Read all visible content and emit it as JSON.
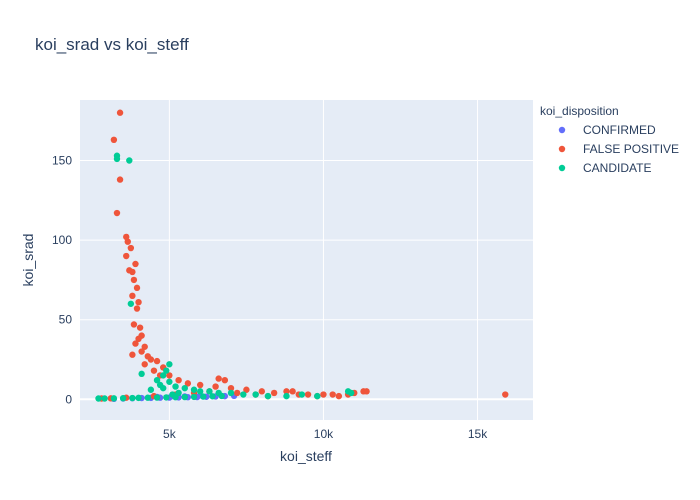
{
  "chart_data": {
    "type": "scatter",
    "title": "koi_srad vs koi_steff",
    "xlabel": "koi_steff",
    "ylabel": "koi_srad",
    "xlim": [
      2100,
      16800
    ],
    "ylim": [
      -13,
      188
    ],
    "x_ticks": [
      {
        "value": 5000,
        "label": "5k"
      },
      {
        "value": 10000,
        "label": "10k"
      },
      {
        "value": 15000,
        "label": "15k"
      }
    ],
    "y_ticks": [
      {
        "value": 0,
        "label": "0"
      },
      {
        "value": 50,
        "label": "50"
      },
      {
        "value": 100,
        "label": "100"
      },
      {
        "value": 150,
        "label": "150"
      }
    ],
    "grid": true,
    "legend": {
      "title": "koi_disposition",
      "position": "top-right"
    },
    "series": [
      {
        "name": "CONFIRMED",
        "color": "#636efa",
        "points": [
          [
            3200,
            0.3
          ],
          [
            3500,
            0.5
          ],
          [
            3800,
            0.7
          ],
          [
            4100,
            0.8
          ],
          [
            4400,
            0.9
          ],
          [
            4700,
            1.0
          ],
          [
            5000,
            1.1
          ],
          [
            5300,
            1.2
          ],
          [
            5600,
            1.3
          ],
          [
            5900,
            1.4
          ],
          [
            6200,
            1.6
          ],
          [
            6500,
            1.8
          ],
          [
            6800,
            2.0
          ],
          [
            7100,
            2.2
          ],
          [
            4600,
            1.5
          ],
          [
            5100,
            2.0
          ],
          [
            5500,
            1.8
          ],
          [
            6000,
            2.5
          ]
        ]
      },
      {
        "name": "FALSE POSITIVE",
        "color": "#ef553b",
        "points": [
          [
            3400,
            180
          ],
          [
            3200,
            163
          ],
          [
            3400,
            138
          ],
          [
            3300,
            117
          ],
          [
            3600,
            102
          ],
          [
            3650,
            99
          ],
          [
            3750,
            95
          ],
          [
            3600,
            90
          ],
          [
            3700,
            81
          ],
          [
            3900,
            85
          ],
          [
            3800,
            80
          ],
          [
            3850,
            75
          ],
          [
            3950,
            70
          ],
          [
            3800,
            65
          ],
          [
            4000,
            61
          ],
          [
            3950,
            57
          ],
          [
            3850,
            47
          ],
          [
            4050,
            45
          ],
          [
            4100,
            40
          ],
          [
            4000,
            38
          ],
          [
            3900,
            35
          ],
          [
            4200,
            33
          ],
          [
            3800,
            28
          ],
          [
            4100,
            30
          ],
          [
            4300,
            27
          ],
          [
            4400,
            25
          ],
          [
            4200,
            22
          ],
          [
            4600,
            24
          ],
          [
            4800,
            20
          ],
          [
            4500,
            18
          ],
          [
            4700,
            15
          ],
          [
            5000,
            15
          ],
          [
            5300,
            12
          ],
          [
            5600,
            10
          ],
          [
            6000,
            9
          ],
          [
            6500,
            8
          ],
          [
            6600,
            13
          ],
          [
            6800,
            12
          ],
          [
            7000,
            7
          ],
          [
            7500,
            6
          ],
          [
            8000,
            5
          ],
          [
            8400,
            4
          ],
          [
            8800,
            5
          ],
          [
            9000,
            5
          ],
          [
            9500,
            3
          ],
          [
            10000,
            3
          ],
          [
            10300,
            3
          ],
          [
            10800,
            3
          ],
          [
            11000,
            4
          ],
          [
            11300,
            5
          ],
          [
            11400,
            5
          ],
          [
            15900,
            3
          ],
          [
            2800,
            0.5
          ],
          [
            3100,
            0.6
          ],
          [
            3600,
            1
          ],
          [
            4500,
            2
          ],
          [
            5200,
            3
          ],
          [
            5800,
            4
          ],
          [
            6300,
            5
          ],
          [
            7200,
            4
          ],
          [
            7800,
            3
          ],
          [
            8200,
            2
          ],
          [
            9200,
            3
          ],
          [
            9800,
            2
          ],
          [
            10500,
            2
          ]
        ]
      },
      {
        "name": "CANDIDATE",
        "color": "#00cc96",
        "points": [
          [
            3300,
            153
          ],
          [
            3300,
            151
          ],
          [
            3700,
            150
          ],
          [
            3750,
            60
          ],
          [
            4100,
            16
          ],
          [
            4600,
            12
          ],
          [
            5000,
            22
          ],
          [
            4900,
            18
          ],
          [
            4800,
            15
          ],
          [
            5000,
            11
          ],
          [
            4700,
            9
          ],
          [
            5200,
            8
          ],
          [
            5500,
            7
          ],
          [
            5800,
            6
          ],
          [
            6000,
            5
          ],
          [
            6300,
            5
          ],
          [
            6600,
            4
          ],
          [
            7000,
            4
          ],
          [
            7400,
            3
          ],
          [
            7800,
            3
          ],
          [
            8200,
            2
          ],
          [
            8800,
            2
          ],
          [
            9300,
            3
          ],
          [
            9800,
            2
          ],
          [
            10800,
            5
          ],
          [
            10900,
            4
          ],
          [
            2700,
            0.5
          ],
          [
            2900,
            0.5
          ],
          [
            3200,
            0.6
          ],
          [
            3500,
            0.7
          ],
          [
            3800,
            0.8
          ],
          [
            4000,
            0.9
          ],
          [
            4300,
            1.0
          ],
          [
            4600,
            1.1
          ],
          [
            4900,
            1.2
          ],
          [
            5200,
            1.3
          ],
          [
            5500,
            1.4
          ],
          [
            5800,
            1.5
          ],
          [
            6100,
            1.7
          ],
          [
            6400,
            1.9
          ],
          [
            6700,
            2.1
          ],
          [
            5100,
            3
          ],
          [
            5300,
            4
          ],
          [
            4400,
            6
          ],
          [
            4800,
            7
          ]
        ]
      }
    ]
  }
}
